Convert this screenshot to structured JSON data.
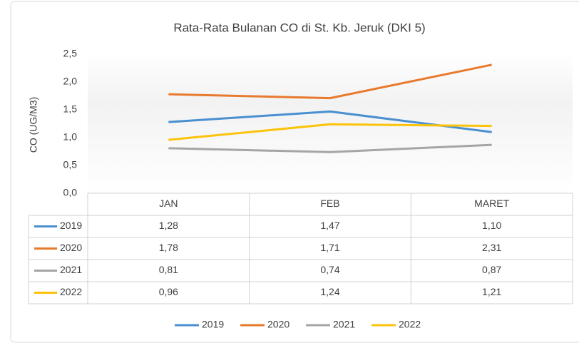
{
  "chart_data": {
    "type": "line",
    "title": "Rata-Rata Bulanan CO di St. Kb. Jeruk (DKI 5)",
    "y_label": "CO  (UG/M3)",
    "categories": [
      "JAN",
      "FEB",
      "MARET"
    ],
    "series": [
      {
        "name": "2019",
        "color": "#4a8fd0",
        "values": [
          1.28,
          1.47,
          1.1
        ],
        "value_labels": [
          "1,28",
          "1,47",
          "1,10"
        ]
      },
      {
        "name": "2020",
        "color": "#e87a2e",
        "values": [
          1.78,
          1.71,
          2.31
        ],
        "value_labels": [
          "1,78",
          "1,71",
          "2,31"
        ]
      },
      {
        "name": "2021",
        "color": "#a5a5a5",
        "values": [
          0.81,
          0.74,
          0.87
        ],
        "value_labels": [
          "0,81",
          "0,74",
          "0,87"
        ]
      },
      {
        "name": "2022",
        "color": "#fcc30b",
        "values": [
          0.96,
          1.24,
          1.21
        ],
        "value_labels": [
          "0,96",
          "1,24",
          "1,21"
        ]
      }
    ],
    "ylim": [
      0,
      2.5
    ],
    "yticks": [
      {
        "value": 0,
        "label": "0,0"
      },
      {
        "value": 0.5,
        "label": "0,5"
      },
      {
        "value": 1,
        "label": "1,0"
      },
      {
        "value": 1.5,
        "label": "1,5"
      },
      {
        "value": 2,
        "label": "2,0"
      },
      {
        "value": 2.5,
        "label": "2,5"
      }
    ],
    "legend": "bottom"
  }
}
